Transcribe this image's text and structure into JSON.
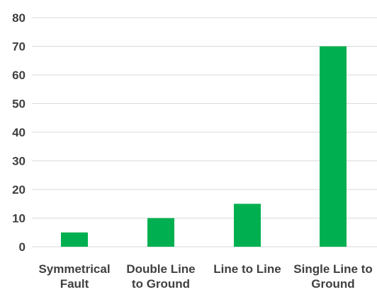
{
  "chart_data": {
    "type": "bar",
    "categories": [
      [
        "Symmetrical",
        "Fault"
      ],
      [
        "Double Line",
        "to Ground"
      ],
      [
        "Line to Line"
      ],
      [
        "Single Line to",
        "Ground"
      ]
    ],
    "values": [
      5,
      10,
      15,
      70
    ],
    "ylim": [
      0,
      80
    ],
    "yticks": [
      0,
      10,
      20,
      30,
      40,
      50,
      60,
      70,
      80
    ],
    "grid": true,
    "bar_color": "#00b050",
    "title": "",
    "xlabel": "",
    "ylabel": ""
  }
}
